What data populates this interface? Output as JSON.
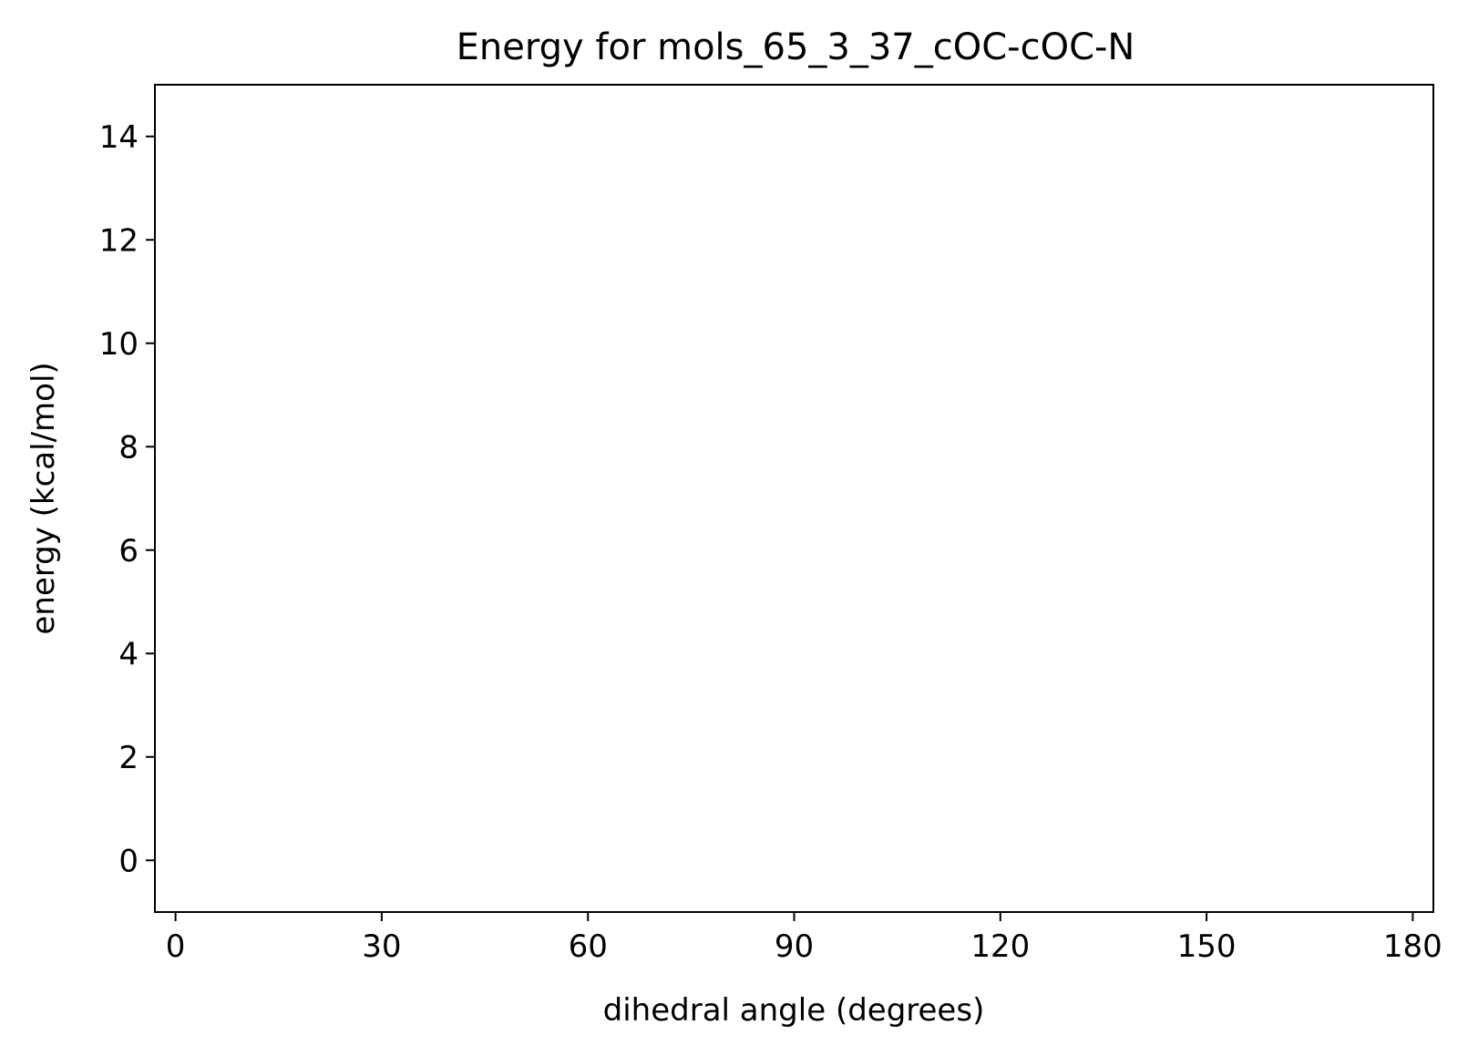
{
  "chart_data": {
    "type": "line",
    "title": "Energy for mols_65_3_37_cOC-cOC-N",
    "xlabel": "dihedral angle (degrees)",
    "ylabel": "energy (kcal/mol)",
    "xlim": [
      -3,
      183
    ],
    "ylim": [
      -1,
      15
    ],
    "xticks": [
      0,
      30,
      60,
      90,
      120,
      150,
      180
    ],
    "xtick_labels": [
      "0",
      "30",
      "60",
      "90",
      "120",
      "150",
      "180"
    ],
    "yticks": [
      0,
      2,
      4,
      6,
      8,
      10,
      12,
      14
    ],
    "ytick_labels": [
      "0",
      "2",
      "4",
      "6",
      "8",
      "10",
      "12",
      "14"
    ],
    "series": [],
    "grid": false,
    "legend": "none"
  }
}
